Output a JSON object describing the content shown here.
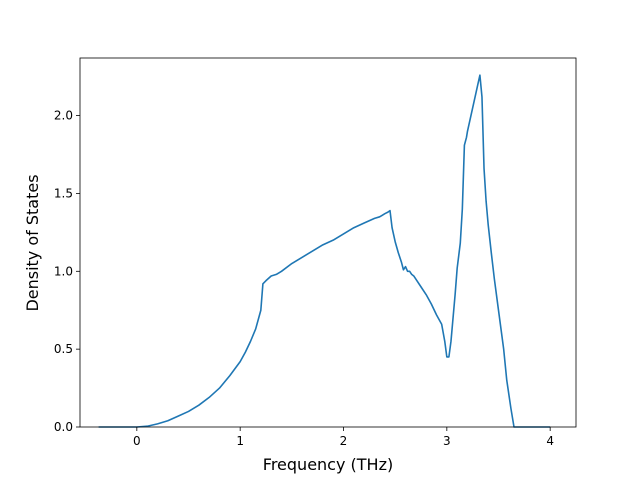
{
  "chart_data": {
    "type": "line",
    "title": "",
    "xlabel": "Frequency (THz)",
    "ylabel": "Density of States",
    "xlim": [
      -0.55,
      4.25
    ],
    "ylim": [
      0.0,
      2.37
    ],
    "xticks": [
      0,
      1,
      2,
      3,
      4
    ],
    "xtick_labels": [
      "0",
      "1",
      "2",
      "3",
      "4"
    ],
    "yticks": [
      0.0,
      0.5,
      1.0,
      1.5,
      2.0
    ],
    "ytick_labels": [
      "0.0",
      "0.5",
      "1.0",
      "1.5",
      "2.0"
    ],
    "grid": false,
    "line_color": "#1f77b4",
    "series": [
      {
        "x": [
          -0.37,
          -0.2,
          0.0,
          0.1,
          0.2,
          0.3,
          0.4,
          0.5,
          0.6,
          0.7,
          0.8,
          0.9,
          1.0,
          1.05,
          1.1,
          1.15,
          1.2,
          1.22,
          1.25,
          1.3,
          1.35,
          1.4,
          1.5,
          1.6,
          1.7,
          1.8,
          1.9,
          2.0,
          2.1,
          2.2,
          2.3,
          2.35,
          2.4,
          2.43,
          2.45,
          2.47,
          2.5,
          2.53,
          2.56,
          2.58,
          2.6,
          2.62,
          2.64,
          2.66,
          2.68,
          2.7,
          2.75,
          2.8,
          2.85,
          2.9,
          2.95,
          2.98,
          3.0,
          3.02,
          3.04,
          3.06,
          3.08,
          3.1,
          3.13,
          3.15,
          3.17,
          3.19,
          3.2,
          3.22,
          3.25,
          3.28,
          3.3,
          3.32,
          3.34,
          3.36,
          3.38,
          3.4,
          3.43,
          3.46,
          3.5,
          3.55,
          3.58,
          3.62,
          3.65,
          3.67,
          3.7,
          3.75,
          3.8,
          3.9,
          4.0
        ],
        "y": [
          0.0,
          0.0,
          0.0,
          0.005,
          0.02,
          0.04,
          0.07,
          0.1,
          0.14,
          0.19,
          0.25,
          0.33,
          0.42,
          0.48,
          0.55,
          0.63,
          0.75,
          0.92,
          0.94,
          0.97,
          0.98,
          1.0,
          1.05,
          1.09,
          1.13,
          1.17,
          1.2,
          1.24,
          1.28,
          1.31,
          1.34,
          1.35,
          1.37,
          1.38,
          1.39,
          1.28,
          1.19,
          1.12,
          1.06,
          1.01,
          1.03,
          1.0,
          1.0,
          0.98,
          0.97,
          0.95,
          0.9,
          0.85,
          0.79,
          0.72,
          0.66,
          0.55,
          0.45,
          0.45,
          0.55,
          0.7,
          0.85,
          1.02,
          1.18,
          1.4,
          1.81,
          1.86,
          1.9,
          1.96,
          2.05,
          2.14,
          2.2,
          2.26,
          2.12,
          1.66,
          1.45,
          1.3,
          1.12,
          0.95,
          0.75,
          0.5,
          0.3,
          0.12,
          0.0,
          0.0,
          0.0,
          0.0,
          0.0,
          0.0,
          0.0
        ]
      }
    ]
  }
}
